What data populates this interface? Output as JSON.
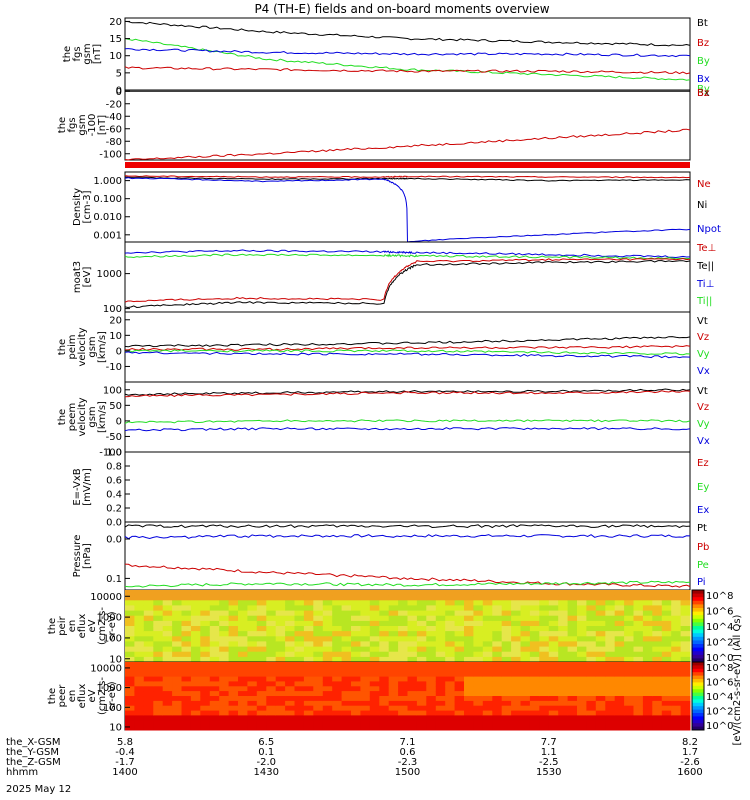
{
  "title": "P4 (TH-E) fields and on-board moments overview",
  "date_label": "2025 May 12",
  "colors": {
    "black": "#000000",
    "red": "#cc0000",
    "green": "#22dd22",
    "blue": "#0000dd"
  },
  "time_axis": {
    "hhmm": [
      "1400",
      "1430",
      "1500",
      "1530",
      "1600"
    ],
    "rows": [
      {
        "label": "the_X-GSM",
        "values": [
          "5.8",
          "6.5",
          "7.1",
          "7.7",
          "8.2"
        ]
      },
      {
        "label": "the_Y-GSM",
        "values": [
          "-0.4",
          "0.1",
          "0.6",
          "1.1",
          "1.7"
        ]
      },
      {
        "label": "the_Z-GSM",
        "values": [
          "-1.7",
          "-2.0",
          "-2.3",
          "-2.5",
          "-2.6"
        ]
      },
      {
        "label": "hhmm",
        "values": [
          "1400",
          "1430",
          "1500",
          "1530",
          "1600"
        ]
      }
    ]
  },
  "chart_data": [
    {
      "type": "line",
      "ylabel": [
        "the",
        "fgs",
        "gsm",
        "[nT]"
      ],
      "ylim": [
        0,
        21
      ],
      "ticks": [
        "20",
        "15",
        "10",
        "5",
        "0"
      ],
      "legend": [
        {
          "name": "Bt",
          "color": "black"
        },
        {
          "name": "Bz",
          "color": "red"
        },
        {
          "name": "By",
          "color": "green"
        },
        {
          "name": "Bx",
          "color": "blue"
        },
        {
          "name": "By",
          "color": "green"
        },
        {
          "name": "Bx",
          "color": "black"
        }
      ],
      "x": [
        0,
        30,
        60,
        90,
        120
      ],
      "series": [
        {
          "name": "Bt",
          "color": "black",
          "values": [
            20,
            17,
            15,
            14,
            13
          ]
        },
        {
          "name": "By",
          "color": "green",
          "values": [
            15,
            9,
            6,
            4.5,
            3
          ]
        },
        {
          "name": "Bx",
          "color": "blue",
          "values": [
            12,
            11,
            10.5,
            10.5,
            10
          ]
        },
        {
          "name": "Bz",
          "color": "red",
          "values": [
            6.5,
            6,
            5.5,
            5.5,
            5
          ]
        }
      ]
    },
    {
      "type": "line",
      "ylabel": [
        "the",
        "fgs",
        "gsm",
        "-100",
        "[nT]"
      ],
      "ylim": [
        -110,
        2
      ],
      "ticks": [
        "0",
        "-20",
        "-40",
        "-60",
        "-80",
        "-100"
      ],
      "legend": [
        {
          "name": "Bz",
          "color": "red"
        }
      ],
      "x": [
        0,
        30,
        60,
        90,
        120
      ],
      "series": [
        {
          "name": "Bx",
          "color": "black",
          "values": [
            0,
            0,
            0,
            0,
            0
          ]
        },
        {
          "name": "Bz",
          "color": "red",
          "values": [
            -110,
            -100,
            -88,
            -75,
            -62
          ]
        }
      ]
    },
    {
      "type": "line",
      "ylabel": [
        "Density",
        "[cm-3]"
      ],
      "ylim": [
        0.0004,
        3
      ],
      "scale": "log",
      "ticks": [
        "1.000",
        "0.100",
        "0.010",
        "0.001"
      ],
      "legend": [
        {
          "name": "Ne",
          "color": "red"
        },
        {
          "name": "Ni",
          "color": "black"
        },
        {
          "name": "Npot",
          "color": "blue"
        }
      ],
      "x": [
        0,
        30,
        55,
        60,
        90,
        120
      ],
      "series": [
        {
          "name": "Ne",
          "color": "red",
          "values": [
            1.8,
            1.6,
            1.6,
            1.7,
            1.6,
            1.5
          ]
        },
        {
          "name": "Ni",
          "color": "black",
          "values": [
            1.5,
            1.2,
            1.3,
            1.3,
            1.0,
            1.1
          ]
        },
        {
          "name": "Npot",
          "color": "blue",
          "values": [
            1.4,
            0.9,
            1.2,
            0.0004,
            0.001,
            0.002
          ]
        }
      ]
    },
    {
      "type": "line",
      "ylabel": [
        "moat3",
        "[eV]"
      ],
      "ylim": [
        80,
        8000
      ],
      "scale": "log",
      "ticks": [
        "1000",
        "100"
      ],
      "legend": [
        {
          "name": "Te⊥",
          "color": "red"
        },
        {
          "name": "Te||",
          "color": "black"
        },
        {
          "name": "Ti⊥",
          "color": "blue"
        },
        {
          "name": "Ti||",
          "color": "green"
        }
      ],
      "x": [
        0,
        25,
        55,
        62,
        90,
        120
      ],
      "series": [
        {
          "name": "Ti⊥",
          "color": "blue",
          "values": [
            4000,
            4500,
            4200,
            4000,
            3500,
            3000
          ]
        },
        {
          "name": "Ti||",
          "color": "green",
          "values": [
            3000,
            3500,
            3300,
            3200,
            3000,
            2700
          ]
        },
        {
          "name": "Te⊥",
          "color": "red",
          "values": [
            160,
            200,
            180,
            2200,
            2500,
            2600
          ]
        },
        {
          "name": "Te||",
          "color": "black",
          "values": [
            110,
            150,
            140,
            1800,
            2100,
            2300
          ]
        }
      ]
    },
    {
      "type": "line",
      "ylabel": [
        "the",
        "peim",
        "velocity",
        "gsm",
        "[km/s]"
      ],
      "ylim": [
        -20,
        25
      ],
      "ticks": [
        "20",
        "10",
        "0",
        "-10"
      ],
      "legend": [
        {
          "name": "Vt",
          "color": "black"
        },
        {
          "name": "Vz",
          "color": "red"
        },
        {
          "name": "Vy",
          "color": "green"
        },
        {
          "name": "Vx",
          "color": "blue"
        }
      ],
      "x": [
        0,
        30,
        60,
        90,
        120
      ],
      "series": [
        {
          "name": "Vt",
          "color": "black",
          "values": [
            3,
            4,
            5,
            7,
            9
          ]
        },
        {
          "name": "Vz",
          "color": "red",
          "values": [
            1,
            1,
            2,
            2,
            3
          ]
        },
        {
          "name": "Vy",
          "color": "green",
          "values": [
            0,
            0,
            0,
            -1,
            -2
          ]
        },
        {
          "name": "Vx",
          "color": "blue",
          "values": [
            -1,
            -2,
            -2,
            -3,
            -4
          ]
        }
      ]
    },
    {
      "type": "line",
      "ylabel": [
        "the",
        "peem",
        "velocity",
        "gsm",
        "[km/s]"
      ],
      "ylim": [
        -100,
        125
      ],
      "ticks": [
        "100",
        "50",
        "0",
        "-50",
        "-100"
      ],
      "legend": [
        {
          "name": "Vt",
          "color": "black"
        },
        {
          "name": "Vz",
          "color": "red"
        },
        {
          "name": "Vy",
          "color": "green"
        },
        {
          "name": "Vx",
          "color": "blue"
        }
      ],
      "x": [
        0,
        30,
        60,
        90,
        120
      ],
      "series": [
        {
          "name": "Vt",
          "color": "black",
          "values": [
            85,
            90,
            95,
            95,
            100
          ]
        },
        {
          "name": "Vz",
          "color": "red",
          "values": [
            80,
            85,
            90,
            90,
            95
          ]
        },
        {
          "name": "Vy",
          "color": "green",
          "values": [
            -5,
            0,
            0,
            0,
            0
          ]
        },
        {
          "name": "Vx",
          "color": "blue",
          "values": [
            -30,
            -25,
            -25,
            -25,
            -25
          ]
        }
      ]
    },
    {
      "type": "line",
      "ylabel": [
        "E=-VxB",
        "[mV/m]"
      ],
      "ylim": [
        0,
        1
      ],
      "ticks": [
        "1.0",
        "0.8",
        "0.6",
        "0.4",
        "0.2",
        "0.0"
      ],
      "legend": [
        {
          "name": "Ez",
          "color": "red"
        },
        {
          "name": "Ey",
          "color": "green"
        },
        {
          "name": "Ex",
          "color": "blue"
        }
      ],
      "x": [],
      "series": []
    },
    {
      "type": "line",
      "ylabel": [
        "Pressure",
        "[nPa]"
      ],
      "ylim": [
        0.06,
        1.2
      ],
      "scale": "log",
      "ticks": [
        "0.0",
        "0.1"
      ],
      "legend": [
        {
          "name": "Pt",
          "color": "black"
        },
        {
          "name": "Pb",
          "color": "red"
        },
        {
          "name": "Pe",
          "color": "green"
        },
        {
          "name": "Pi",
          "color": "blue"
        }
      ],
      "x": [
        0,
        30,
        60,
        90,
        120
      ],
      "series": [
        {
          "name": "Pt",
          "color": "black",
          "values": [
            1.0,
            1.0,
            1.0,
            1.0,
            1.0
          ]
        },
        {
          "name": "Pi",
          "color": "blue",
          "values": [
            0.6,
            0.65,
            0.65,
            0.65,
            0.65
          ]
        },
        {
          "name": "Pb",
          "color": "red",
          "values": [
            0.18,
            0.13,
            0.1,
            0.08,
            0.07
          ]
        },
        {
          "name": "Pe",
          "color": "green",
          "values": [
            0.07,
            0.08,
            0.075,
            0.08,
            0.085
          ]
        }
      ]
    },
    {
      "type": "heatmap",
      "ylabel": [
        "the",
        "peir",
        "en",
        "eflux",
        "eV",
        "(cm2-s-",
        "sr-eV)"
      ],
      "scale": "log",
      "ylim": [
        7,
        20000
      ],
      "ticks": [
        "10000",
        "1000",
        "100",
        "10"
      ]
    },
    {
      "type": "heatmap",
      "ylabel": [
        "the",
        "peer",
        "en",
        "eflux",
        "eV",
        "(cm2-s-",
        "sr-eV)"
      ],
      "scale": "log",
      "ylim": [
        7,
        20000
      ],
      "ticks": [
        "10000",
        "1000",
        "100",
        "10"
      ]
    }
  ],
  "colorbar": {
    "label": "[eV/(cm2-s-sr-eV)] (All Qs)",
    "ticks": [
      "10^8",
      "10^6",
      "10^4",
      "10^2",
      "10^0"
    ]
  }
}
